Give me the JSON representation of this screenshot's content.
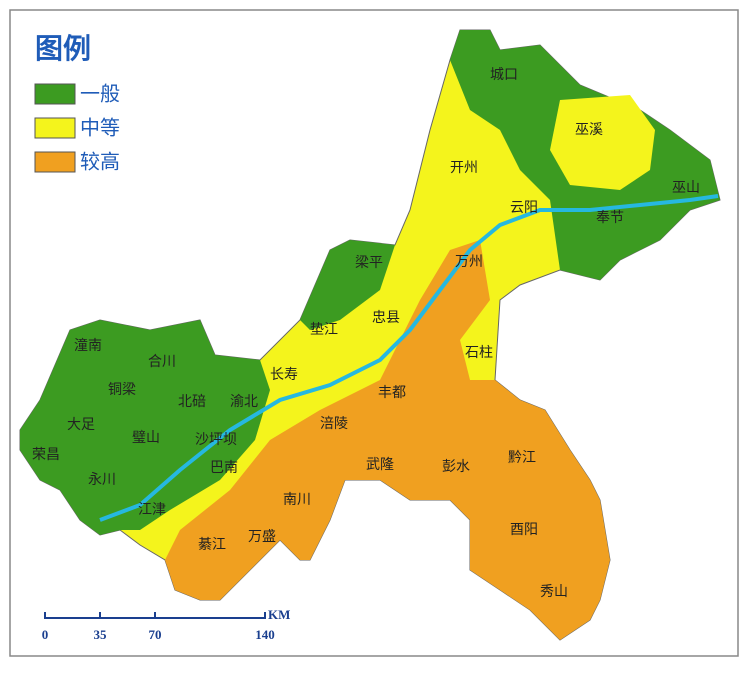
{
  "legend": {
    "title": "图例",
    "items": [
      {
        "label": "一般",
        "color": "#3c9b21"
      },
      {
        "label": "中等",
        "color": "#f4f41c"
      },
      {
        "label": "较高",
        "color": "#f0a020"
      }
    ]
  },
  "places": [
    "城口",
    "巫溪",
    "开州",
    "云阳",
    "奉节",
    "巫山",
    "梁平",
    "万州",
    "垫江",
    "忠县",
    "石柱",
    "潼南",
    "合川",
    "铜梁",
    "北碚",
    "渝北",
    "长寿",
    "丰都",
    "大足",
    "璧山",
    "沙坪坝",
    "涪陵",
    "荣昌",
    "永川",
    "巴南",
    "武隆",
    "彭水",
    "黔江",
    "江津",
    "南川",
    "酉阳",
    "綦江",
    "万盛",
    "秀山"
  ],
  "scale_bar": {
    "labels": [
      "0",
      "35",
      "70",
      "140"
    ],
    "unit": "KM"
  }
}
